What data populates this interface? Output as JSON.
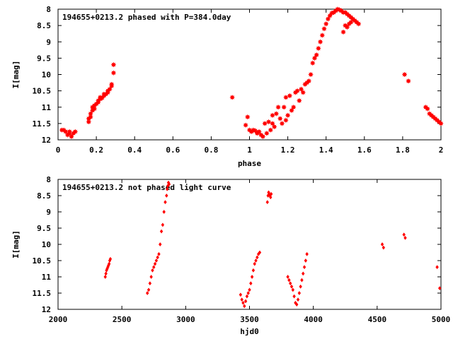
{
  "colors": {
    "point": "#ff0000",
    "axis": "#000000",
    "background": "#ffffff"
  },
  "chart_data": [
    {
      "type": "scatter",
      "title": "194655+0213.2 phased with P=384.0day",
      "xlabel": "phase",
      "ylabel": "I[mag]",
      "xlim": [
        0,
        2
      ],
      "ylim": [
        12,
        8
      ],
      "y_inverted": true,
      "xticks": [
        0,
        0.2,
        0.4,
        0.6,
        0.8,
        1,
        1.2,
        1.4,
        1.6,
        1.8,
        2
      ],
      "xtick_labels": [
        "0",
        "0.2",
        "0.4",
        "0.6",
        "0.8",
        "1",
        "1.2",
        "1.4",
        "1.6",
        "1.8",
        "2"
      ],
      "yticks": [
        8,
        8.5,
        9,
        9.5,
        10,
        10.5,
        11,
        11.5,
        12
      ],
      "ytick_labels": [
        "8",
        "8.5",
        "9",
        "9.5",
        "10",
        "10.5",
        "11",
        "11.5",
        "12"
      ],
      "grid": false,
      "marker": "star",
      "series": [
        {
          "x": [
            0.02,
            0.03,
            0.04,
            0.05,
            0.06,
            0.06,
            0.07,
            0.08,
            0.09,
            0.16,
            0.16,
            0.17,
            0.17,
            0.18,
            0.18,
            0.19,
            0.19,
            0.2,
            0.21,
            0.21,
            0.22,
            0.22,
            0.23,
            0.24,
            0.24,
            0.25,
            0.26,
            0.26,
            0.27,
            0.28,
            0.28,
            0.29,
            0.29,
            0.91,
            0.98,
            0.99,
            1.0,
            1.01,
            1.02,
            1.03,
            1.04,
            1.05,
            1.06,
            1.07,
            1.08,
            1.09,
            1.1,
            1.11,
            1.12,
            1.12,
            1.13,
            1.14,
            1.15,
            1.16,
            1.17,
            1.18,
            1.19,
            1.19,
            1.2,
            1.21,
            1.22,
            1.23,
            1.24,
            1.25,
            1.26,
            1.27,
            1.28,
            1.29,
            1.3,
            1.31,
            1.32,
            1.33,
            1.34,
            1.35,
            1.36,
            1.37,
            1.38,
            1.39,
            1.4,
            1.41,
            1.42,
            1.43,
            1.44,
            1.45,
            1.46,
            1.47,
            1.48,
            1.49,
            1.5,
            1.51,
            1.52,
            1.53,
            1.54,
            1.55,
            1.56,
            1.57,
            1.49,
            1.5,
            1.51,
            1.52,
            1.53,
            1.81,
            1.83,
            1.92,
            1.93,
            1.94,
            1.95,
            1.96,
            1.97,
            1.98,
            1.99,
            2.0
          ],
          "y": [
            11.7,
            11.7,
            11.75,
            11.85,
            11.75,
            11.8,
            11.9,
            11.8,
            11.75,
            11.45,
            11.35,
            11.3,
            11.2,
            11.0,
            11.1,
            11.05,
            10.95,
            10.9,
            10.85,
            10.8,
            10.75,
            10.7,
            10.72,
            10.65,
            10.6,
            10.6,
            10.55,
            10.5,
            10.45,
            10.3,
            10.35,
            9.95,
            9.7,
            10.7,
            11.55,
            11.3,
            11.7,
            11.75,
            11.7,
            11.72,
            11.8,
            11.75,
            11.85,
            11.9,
            11.5,
            11.8,
            11.45,
            11.7,
            11.25,
            11.5,
            11.6,
            11.2,
            11.0,
            11.35,
            11.5,
            11.0,
            11.4,
            10.7,
            11.25,
            10.65,
            11.1,
            11.0,
            10.55,
            10.5,
            10.8,
            10.45,
            10.55,
            10.3,
            10.25,
            10.2,
            10.0,
            9.65,
            9.5,
            9.4,
            9.2,
            9.0,
            8.8,
            8.6,
            8.45,
            8.3,
            8.2,
            8.12,
            8.1,
            8.05,
            8.0,
            8.02,
            8.05,
            8.1,
            8.1,
            8.15,
            8.2,
            8.25,
            8.3,
            8.35,
            8.4,
            8.45,
            8.7,
            8.5,
            8.55,
            8.45,
            8.4,
            10.0,
            10.2,
            11.0,
            11.05,
            11.2,
            11.25,
            11.3,
            11.35,
            11.4,
            11.45,
            11.5
          ]
        }
      ]
    },
    {
      "type": "scatter",
      "title": "194655+0213.2 not phased light curve",
      "xlabel": "hjd0",
      "ylabel": "I[mag]",
      "xlim": [
        2000,
        5000
      ],
      "ylim": [
        12,
        8
      ],
      "y_inverted": true,
      "xticks": [
        2000,
        2500,
        3000,
        3500,
        4000,
        4500,
        5000
      ],
      "xtick_labels": [
        "2000",
        "2500",
        "3000",
        "3500",
        "4000",
        "4500",
        "5000"
      ],
      "yticks": [
        8,
        8.5,
        9,
        9.5,
        10,
        10.5,
        11,
        11.5,
        12
      ],
      "ytick_labels": [
        "8",
        "8.5",
        "9",
        "9.5",
        "10",
        "10.5",
        "11",
        "11.5",
        "12"
      ],
      "grid": false,
      "marker": "diamond",
      "series": [
        {
          "x": [
            2370,
            2375,
            2380,
            2385,
            2390,
            2395,
            2400,
            2405,
            2410,
            2700,
            2710,
            2720,
            2730,
            2740,
            2750,
            2760,
            2770,
            2780,
            2790,
            2800,
            2810,
            2820,
            2830,
            2840,
            2850,
            2855,
            2860,
            2865,
            2870,
            3430,
            3440,
            3450,
            3460,
            3470,
            3480,
            3490,
            3500,
            3510,
            3520,
            3530,
            3540,
            3550,
            3560,
            3570,
            3580,
            3640,
            3645,
            3650,
            3655,
            3660,
            3665,
            3670,
            3800,
            3810,
            3820,
            3830,
            3840,
            3850,
            3860,
            3870,
            3880,
            3890,
            3900,
            3910,
            3920,
            3930,
            3940,
            3950,
            4540,
            4550,
            4710,
            4720,
            4970,
            4990
          ],
          "y": [
            11.0,
            10.9,
            10.8,
            10.75,
            10.7,
            10.65,
            10.6,
            10.5,
            10.45,
            11.5,
            11.4,
            11.2,
            11.0,
            10.8,
            10.7,
            10.6,
            10.5,
            10.4,
            10.3,
            10.0,
            9.6,
            9.4,
            9.0,
            8.7,
            8.5,
            8.3,
            8.2,
            8.1,
            8.15,
            11.55,
            11.7,
            11.8,
            11.9,
            11.75,
            11.6,
            11.5,
            11.4,
            11.2,
            11.0,
            10.8,
            10.6,
            10.5,
            10.4,
            10.3,
            10.25,
            8.7,
            8.5,
            8.4,
            8.45,
            8.5,
            8.55,
            8.45,
            11.0,
            11.1,
            11.2,
            11.3,
            11.4,
            11.6,
            11.8,
            11.85,
            11.7,
            11.5,
            11.3,
            11.1,
            10.9,
            10.7,
            10.5,
            10.3,
            10.0,
            10.1,
            9.7,
            9.8,
            10.7,
            11.35
          ]
        }
      ]
    }
  ]
}
